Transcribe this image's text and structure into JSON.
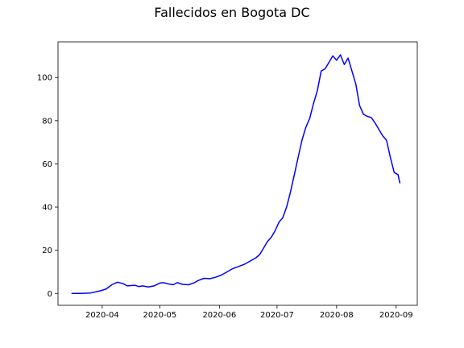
{
  "chart_data": {
    "type": "line",
    "title": "Fallecidos en Bogota DC",
    "xlabel": "",
    "ylabel": "",
    "x_range": [
      "2020-03-09",
      "2020-09-12"
    ],
    "ylim": [
      -5.5,
      116.5
    ],
    "grid": false,
    "x_ticks": [
      {
        "date": "2020-04-01",
        "label": "2020-04"
      },
      {
        "date": "2020-05-01",
        "label": "2020-05"
      },
      {
        "date": "2020-06-01",
        "label": "2020-06"
      },
      {
        "date": "2020-07-01",
        "label": "2020-07"
      },
      {
        "date": "2020-08-01",
        "label": "2020-08"
      },
      {
        "date": "2020-09-01",
        "label": "2020-09"
      }
    ],
    "y_ticks": [
      0,
      20,
      40,
      60,
      80,
      100
    ],
    "series": [
      {
        "color": "#0000ff",
        "points": [
          [
            "2020-03-16",
            0
          ],
          [
            "2020-03-21",
            0
          ],
          [
            "2020-03-26",
            0.2
          ],
          [
            "2020-03-31",
            1.2
          ],
          [
            "2020-04-03",
            2
          ],
          [
            "2020-04-06",
            4
          ],
          [
            "2020-04-09",
            5.2
          ],
          [
            "2020-04-12",
            4.5
          ],
          [
            "2020-04-14",
            3.5
          ],
          [
            "2020-04-18",
            3.8
          ],
          [
            "2020-04-20",
            3.2
          ],
          [
            "2020-04-22",
            3.5
          ],
          [
            "2020-04-25",
            3
          ],
          [
            "2020-04-28",
            3.5
          ],
          [
            "2020-05-01",
            4.8
          ],
          [
            "2020-05-03",
            5
          ],
          [
            "2020-05-05",
            4.5
          ],
          [
            "2020-05-08",
            4
          ],
          [
            "2020-05-10",
            5
          ],
          [
            "2020-05-13",
            4.2
          ],
          [
            "2020-05-16",
            4
          ],
          [
            "2020-05-19",
            5
          ],
          [
            "2020-05-21",
            6
          ],
          [
            "2020-05-24",
            7
          ],
          [
            "2020-05-27",
            6.8
          ],
          [
            "2020-05-30",
            7.5
          ],
          [
            "2020-06-02",
            8.5
          ],
          [
            "2020-06-05",
            10
          ],
          [
            "2020-06-08",
            11.5
          ],
          [
            "2020-06-11",
            12.5
          ],
          [
            "2020-06-14",
            13.5
          ],
          [
            "2020-06-17",
            15
          ],
          [
            "2020-06-20",
            16.5
          ],
          [
            "2020-06-22",
            18
          ],
          [
            "2020-06-24",
            21
          ],
          [
            "2020-06-26",
            24
          ],
          [
            "2020-06-28",
            26
          ],
          [
            "2020-06-30",
            29
          ],
          [
            "2020-07-02",
            33
          ],
          [
            "2020-07-04",
            35
          ],
          [
            "2020-07-06",
            40
          ],
          [
            "2020-07-08",
            47
          ],
          [
            "2020-07-10",
            55
          ],
          [
            "2020-07-12",
            63
          ],
          [
            "2020-07-14",
            71
          ],
          [
            "2020-07-16",
            77
          ],
          [
            "2020-07-18",
            81
          ],
          [
            "2020-07-20",
            88
          ],
          [
            "2020-07-22",
            94
          ],
          [
            "2020-07-24",
            103
          ],
          [
            "2020-07-26",
            104
          ],
          [
            "2020-07-28",
            107
          ],
          [
            "2020-07-30",
            110
          ],
          [
            "2020-08-01",
            108
          ],
          [
            "2020-08-03",
            110.5
          ],
          [
            "2020-08-05",
            106
          ],
          [
            "2020-08-07",
            109
          ],
          [
            "2020-08-09",
            103
          ],
          [
            "2020-08-11",
            97
          ],
          [
            "2020-08-13",
            87
          ],
          [
            "2020-08-15",
            83
          ],
          [
            "2020-08-17",
            82
          ],
          [
            "2020-08-19",
            81.5
          ],
          [
            "2020-08-21",
            79
          ],
          [
            "2020-08-23",
            76
          ],
          [
            "2020-08-25",
            73
          ],
          [
            "2020-08-27",
            71
          ],
          [
            "2020-08-29",
            63
          ],
          [
            "2020-08-31",
            56
          ],
          [
            "2020-09-02",
            55
          ],
          [
            "2020-09-03",
            51
          ]
        ]
      }
    ]
  }
}
